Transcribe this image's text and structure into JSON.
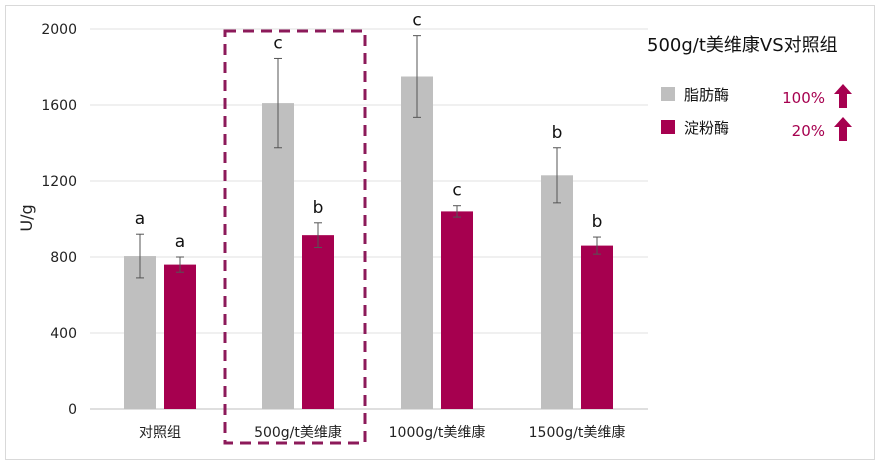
{
  "chart_data": {
    "type": "bar",
    "title": "500g/t美维康VS对照组",
    "ylabel": "U/g",
    "xlabel": "",
    "ylim": [
      0,
      2000
    ],
    "yticks": [
      0,
      400,
      800,
      1200,
      1600,
      2000
    ],
    "grid": true,
    "legend_position": "right",
    "categories": [
      "对照组",
      "500g/t美维康",
      "1000g/t美维康",
      "1500g/t美维康"
    ],
    "highlighted_category": "500g/t美维康",
    "series": [
      {
        "name": "脂肪酶",
        "color": "#bfbfbf",
        "values": [
          805,
          1610,
          1750,
          1230
        ],
        "error": [
          115,
          235,
          215,
          145
        ],
        "significance": [
          "a",
          "c",
          "c",
          "b"
        ],
        "change": "100%"
      },
      {
        "name": "淀粉酶",
        "color": "#a6004f",
        "values": [
          760,
          915,
          1040,
          860
        ],
        "error": [
          40,
          65,
          30,
          45
        ],
        "significance": [
          "a",
          "b",
          "c",
          "b"
        ],
        "change": "20%"
      }
    ]
  },
  "legend_icon": "up-arrow-icon",
  "accent_color": "#a6004f",
  "highlight_box_color": "#8c1a5a"
}
